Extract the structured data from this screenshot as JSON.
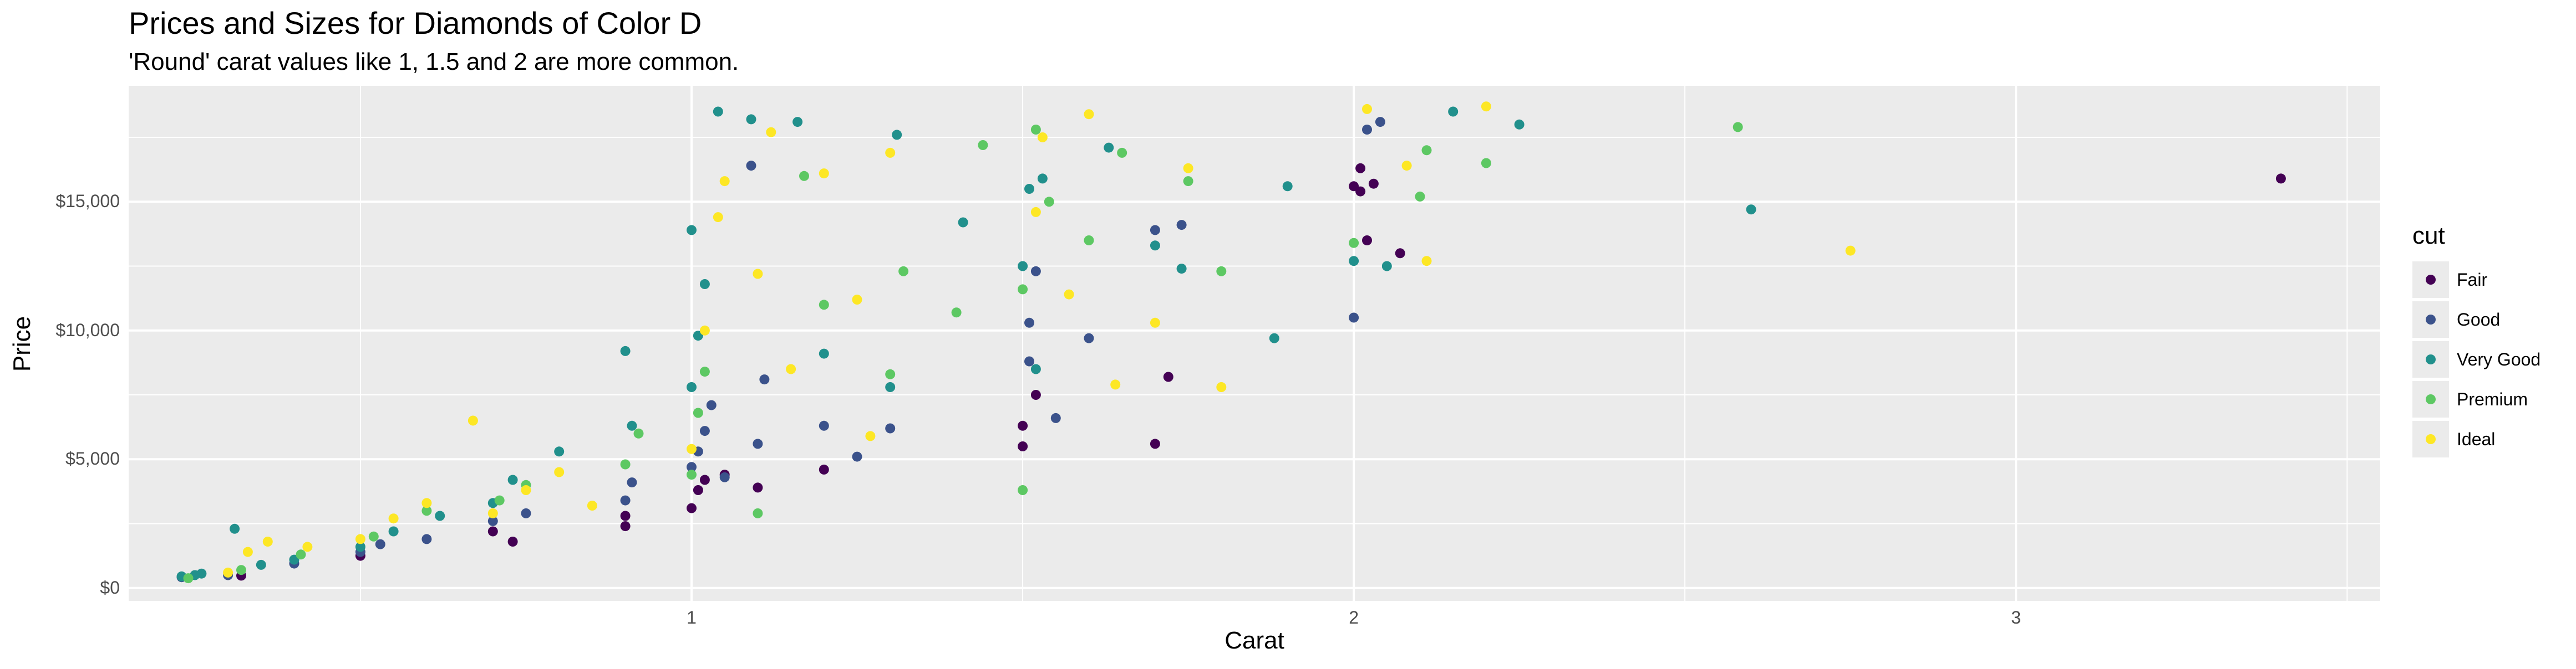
{
  "chart_data": {
    "type": "scatter",
    "title": "Prices and Sizes for Diamonds of Color D",
    "subtitle": "'Round' carat values like 1, 1.5 and 2 are more common.",
    "xlabel": "Carat",
    "ylabel": "Price",
    "xlim": [
      0.15,
      3.55
    ],
    "ylim": [
      -500,
      19500
    ],
    "x_ticks": [
      1,
      2,
      3
    ],
    "x_tick_labels": [
      "1",
      "2",
      "3"
    ],
    "y_ticks": [
      0,
      5000,
      10000,
      15000
    ],
    "y_tick_labels": [
      "$0",
      "$5,000",
      "$10,000",
      "$15,000"
    ],
    "grid": true,
    "legend": {
      "title": "cut",
      "position": "right",
      "entries": [
        "Fair",
        "Good",
        "Very Good",
        "Premium",
        "Ideal"
      ]
    },
    "colors": {
      "Fair": "#440154",
      "Good": "#3b528b",
      "Very Good": "#21908c",
      "Premium": "#5dc863",
      "Ideal": "#fde725"
    },
    "series": [
      {
        "name": "Fair",
        "points": [
          [
            0.32,
            480
          ],
          [
            0.5,
            1250
          ],
          [
            0.7,
            2200
          ],
          [
            0.73,
            1800
          ],
          [
            0.9,
            2400
          ],
          [
            0.9,
            2800
          ],
          [
            1.0,
            3100
          ],
          [
            1.01,
            3800
          ],
          [
            1.02,
            4200
          ],
          [
            1.05,
            4400
          ],
          [
            1.1,
            3900
          ],
          [
            1.2,
            4600
          ],
          [
            1.5,
            5500
          ],
          [
            1.5,
            6300
          ],
          [
            1.52,
            7500
          ],
          [
            1.7,
            5600
          ],
          [
            1.72,
            8200
          ],
          [
            2.0,
            15600
          ],
          [
            2.01,
            15400
          ],
          [
            2.01,
            16300
          ],
          [
            2.02,
            13500
          ],
          [
            2.03,
            15700
          ],
          [
            2.07,
            13000
          ],
          [
            3.4,
            15900
          ]
        ]
      },
      {
        "name": "Good",
        "points": [
          [
            0.23,
            420
          ],
          [
            0.3,
            500
          ],
          [
            0.4,
            950
          ],
          [
            0.5,
            1400
          ],
          [
            0.53,
            1700
          ],
          [
            0.6,
            1900
          ],
          [
            0.7,
            2600
          ],
          [
            0.75,
            2900
          ],
          [
            0.9,
            3400
          ],
          [
            0.91,
            4100
          ],
          [
            1.0,
            4700
          ],
          [
            1.01,
            5300
          ],
          [
            1.02,
            6100
          ],
          [
            1.03,
            7100
          ],
          [
            1.05,
            4300
          ],
          [
            1.1,
            5600
          ],
          [
            1.11,
            8100
          ],
          [
            1.2,
            6300
          ],
          [
            1.25,
            5100
          ],
          [
            1.3,
            6200
          ],
          [
            1.51,
            8800
          ],
          [
            1.51,
            10300
          ],
          [
            1.52,
            12300
          ],
          [
            1.55,
            6600
          ],
          [
            1.6,
            9700
          ],
          [
            1.7,
            13900
          ],
          [
            1.74,
            14100
          ],
          [
            2.0,
            10500
          ],
          [
            2.02,
            17800
          ],
          [
            2.04,
            18100
          ],
          [
            1.09,
            16400
          ]
        ]
      },
      {
        "name": "Very Good",
        "points": [
          [
            0.23,
            450
          ],
          [
            0.25,
            500
          ],
          [
            0.26,
            560
          ],
          [
            0.31,
            2300
          ],
          [
            0.35,
            900
          ],
          [
            0.4,
            1100
          ],
          [
            0.5,
            1600
          ],
          [
            0.55,
            2200
          ],
          [
            0.62,
            2800
          ],
          [
            0.7,
            3300
          ],
          [
            0.73,
            4200
          ],
          [
            0.8,
            5300
          ],
          [
            0.9,
            9200
          ],
          [
            0.91,
            6300
          ],
          [
            1.0,
            7800
          ],
          [
            1.0,
            13900
          ],
          [
            1.01,
            9800
          ],
          [
            1.02,
            11800
          ],
          [
            1.04,
            18500
          ],
          [
            1.09,
            18200
          ],
          [
            1.16,
            18100
          ],
          [
            1.2,
            9100
          ],
          [
            1.31,
            17600
          ],
          [
            1.41,
            14200
          ],
          [
            1.5,
            12500
          ],
          [
            1.51,
            15500
          ],
          [
            1.52,
            8500
          ],
          [
            1.53,
            15900
          ],
          [
            1.63,
            17100
          ],
          [
            1.7,
            13300
          ],
          [
            1.74,
            12400
          ],
          [
            1.88,
            9700
          ],
          [
            1.9,
            15600
          ],
          [
            2.0,
            12700
          ],
          [
            2.05,
            12500
          ],
          [
            2.15,
            18500
          ],
          [
            2.25,
            18000
          ],
          [
            2.6,
            14700
          ],
          [
            1.3,
            7800
          ]
        ]
      },
      {
        "name": "Premium",
        "points": [
          [
            0.24,
            380
          ],
          [
            0.32,
            700
          ],
          [
            0.41,
            1300
          ],
          [
            0.52,
            2000
          ],
          [
            0.6,
            3000
          ],
          [
            0.71,
            3400
          ],
          [
            0.75,
            4000
          ],
          [
            0.9,
            4800
          ],
          [
            0.92,
            6000
          ],
          [
            1.0,
            4400
          ],
          [
            1.01,
            6800
          ],
          [
            1.02,
            8400
          ],
          [
            1.1,
            2900
          ],
          [
            1.2,
            11000
          ],
          [
            1.3,
            8300
          ],
          [
            1.32,
            12300
          ],
          [
            1.4,
            10700
          ],
          [
            1.44,
            17200
          ],
          [
            1.5,
            3800
          ],
          [
            1.5,
            11600
          ],
          [
            1.52,
            17800
          ],
          [
            1.54,
            15000
          ],
          [
            1.6,
            13500
          ],
          [
            1.65,
            16900
          ],
          [
            1.75,
            15800
          ],
          [
            1.8,
            12300
          ],
          [
            2.0,
            13400
          ],
          [
            2.1,
            15200
          ],
          [
            2.11,
            17000
          ],
          [
            2.2,
            16500
          ],
          [
            2.58,
            17900
          ],
          [
            1.17,
            16000
          ]
        ]
      },
      {
        "name": "Ideal",
        "points": [
          [
            0.3,
            600
          ],
          [
            0.33,
            1400
          ],
          [
            0.36,
            1800
          ],
          [
            0.42,
            1600
          ],
          [
            0.5,
            1900
          ],
          [
            0.55,
            2700
          ],
          [
            0.6,
            3300
          ],
          [
            0.67,
            6500
          ],
          [
            0.7,
            2900
          ],
          [
            0.75,
            3800
          ],
          [
            0.8,
            4500
          ],
          [
            0.85,
            3200
          ],
          [
            1.0,
            5400
          ],
          [
            1.02,
            10000
          ],
          [
            1.04,
            14400
          ],
          [
            1.05,
            15800
          ],
          [
            1.1,
            12200
          ],
          [
            1.12,
            17700
          ],
          [
            1.15,
            8500
          ],
          [
            1.2,
            16100
          ],
          [
            1.25,
            11200
          ],
          [
            1.3,
            16900
          ],
          [
            1.52,
            14600
          ],
          [
            1.53,
            17500
          ],
          [
            1.57,
            11400
          ],
          [
            1.6,
            18400
          ],
          [
            1.64,
            7900
          ],
          [
            1.7,
            10300
          ],
          [
            1.75,
            16300
          ],
          [
            1.8,
            7800
          ],
          [
            2.02,
            18600
          ],
          [
            2.08,
            16400
          ],
          [
            2.11,
            12700
          ],
          [
            2.2,
            18700
          ],
          [
            2.75,
            13100
          ],
          [
            1.27,
            5900
          ]
        ]
      }
    ]
  }
}
